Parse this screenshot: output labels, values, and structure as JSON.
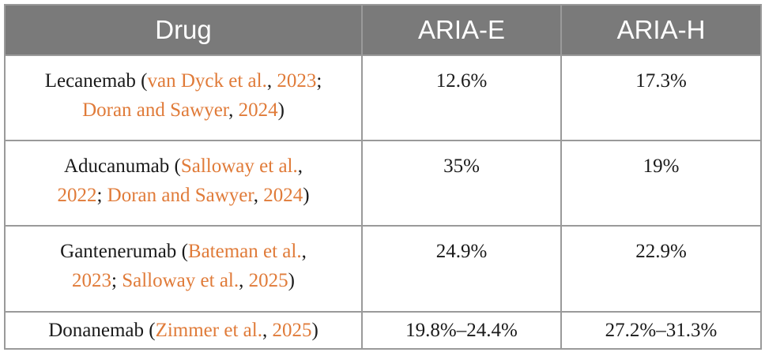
{
  "table": {
    "headers": [
      "Drug",
      "ARIA-E",
      "ARIA-H"
    ],
    "rows": [
      {
        "drug": "Lecanemab",
        "refs": [
          {
            "author": "van Dyck et al.",
            "year": "2023"
          },
          {
            "author": "Doran and Sawyer",
            "year": "2024"
          }
        ],
        "aria_e": "12.6%",
        "aria_h": "17.3%"
      },
      {
        "drug": "Aducanumab",
        "refs": [
          {
            "author": "Salloway et al.",
            "year": "2022"
          },
          {
            "author": "Doran and Sawyer",
            "year": "2024"
          }
        ],
        "aria_e": "35%",
        "aria_h": "19%"
      },
      {
        "drug": "Gantenerumab",
        "refs": [
          {
            "author": "Bateman et al.",
            "year": "2023"
          },
          {
            "author": "Salloway et al.",
            "year": "2025"
          }
        ],
        "aria_e": "24.9%",
        "aria_h": "22.9%"
      },
      {
        "drug": "Donanemab",
        "refs": [
          {
            "author": "Zimmer et al.",
            "year": "2025"
          }
        ],
        "aria_e": "19.8%–24.4%",
        "aria_h": "27.2%–31.3%"
      }
    ]
  },
  "colors": {
    "header_bg": "#7a7a7a",
    "header_text": "#ffffff",
    "link": "#e07b39",
    "border": "#9a9a9a"
  }
}
